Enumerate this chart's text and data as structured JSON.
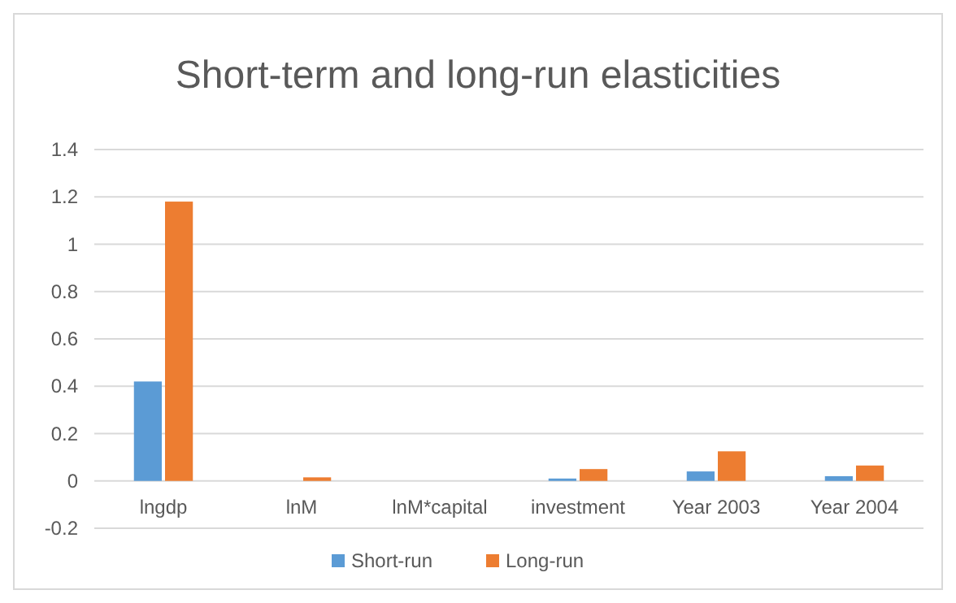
{
  "chart_data": {
    "type": "bar",
    "title": "Short-term and long-run elasticities",
    "categories": [
      "lngdp",
      "lnM",
      "lnM*capital",
      "investment",
      "Year 2003",
      "Year 2004"
    ],
    "series": [
      {
        "name": "Short-run",
        "color": "#5b9bd5",
        "values": [
          0.42,
          0,
          0,
          0.01,
          0.04,
          0.02
        ]
      },
      {
        "name": "Long-run",
        "color": "#ed7d31",
        "values": [
          1.18,
          0.015,
          0,
          0.05,
          0.125,
          0.065
        ]
      }
    ],
    "ylim": [
      -0.2,
      1.4
    ],
    "yticks": [
      -0.2,
      0,
      0.2,
      0.4,
      0.6,
      0.8,
      1,
      1.2,
      1.4
    ],
    "grid": "y",
    "legend": "bottom"
  }
}
